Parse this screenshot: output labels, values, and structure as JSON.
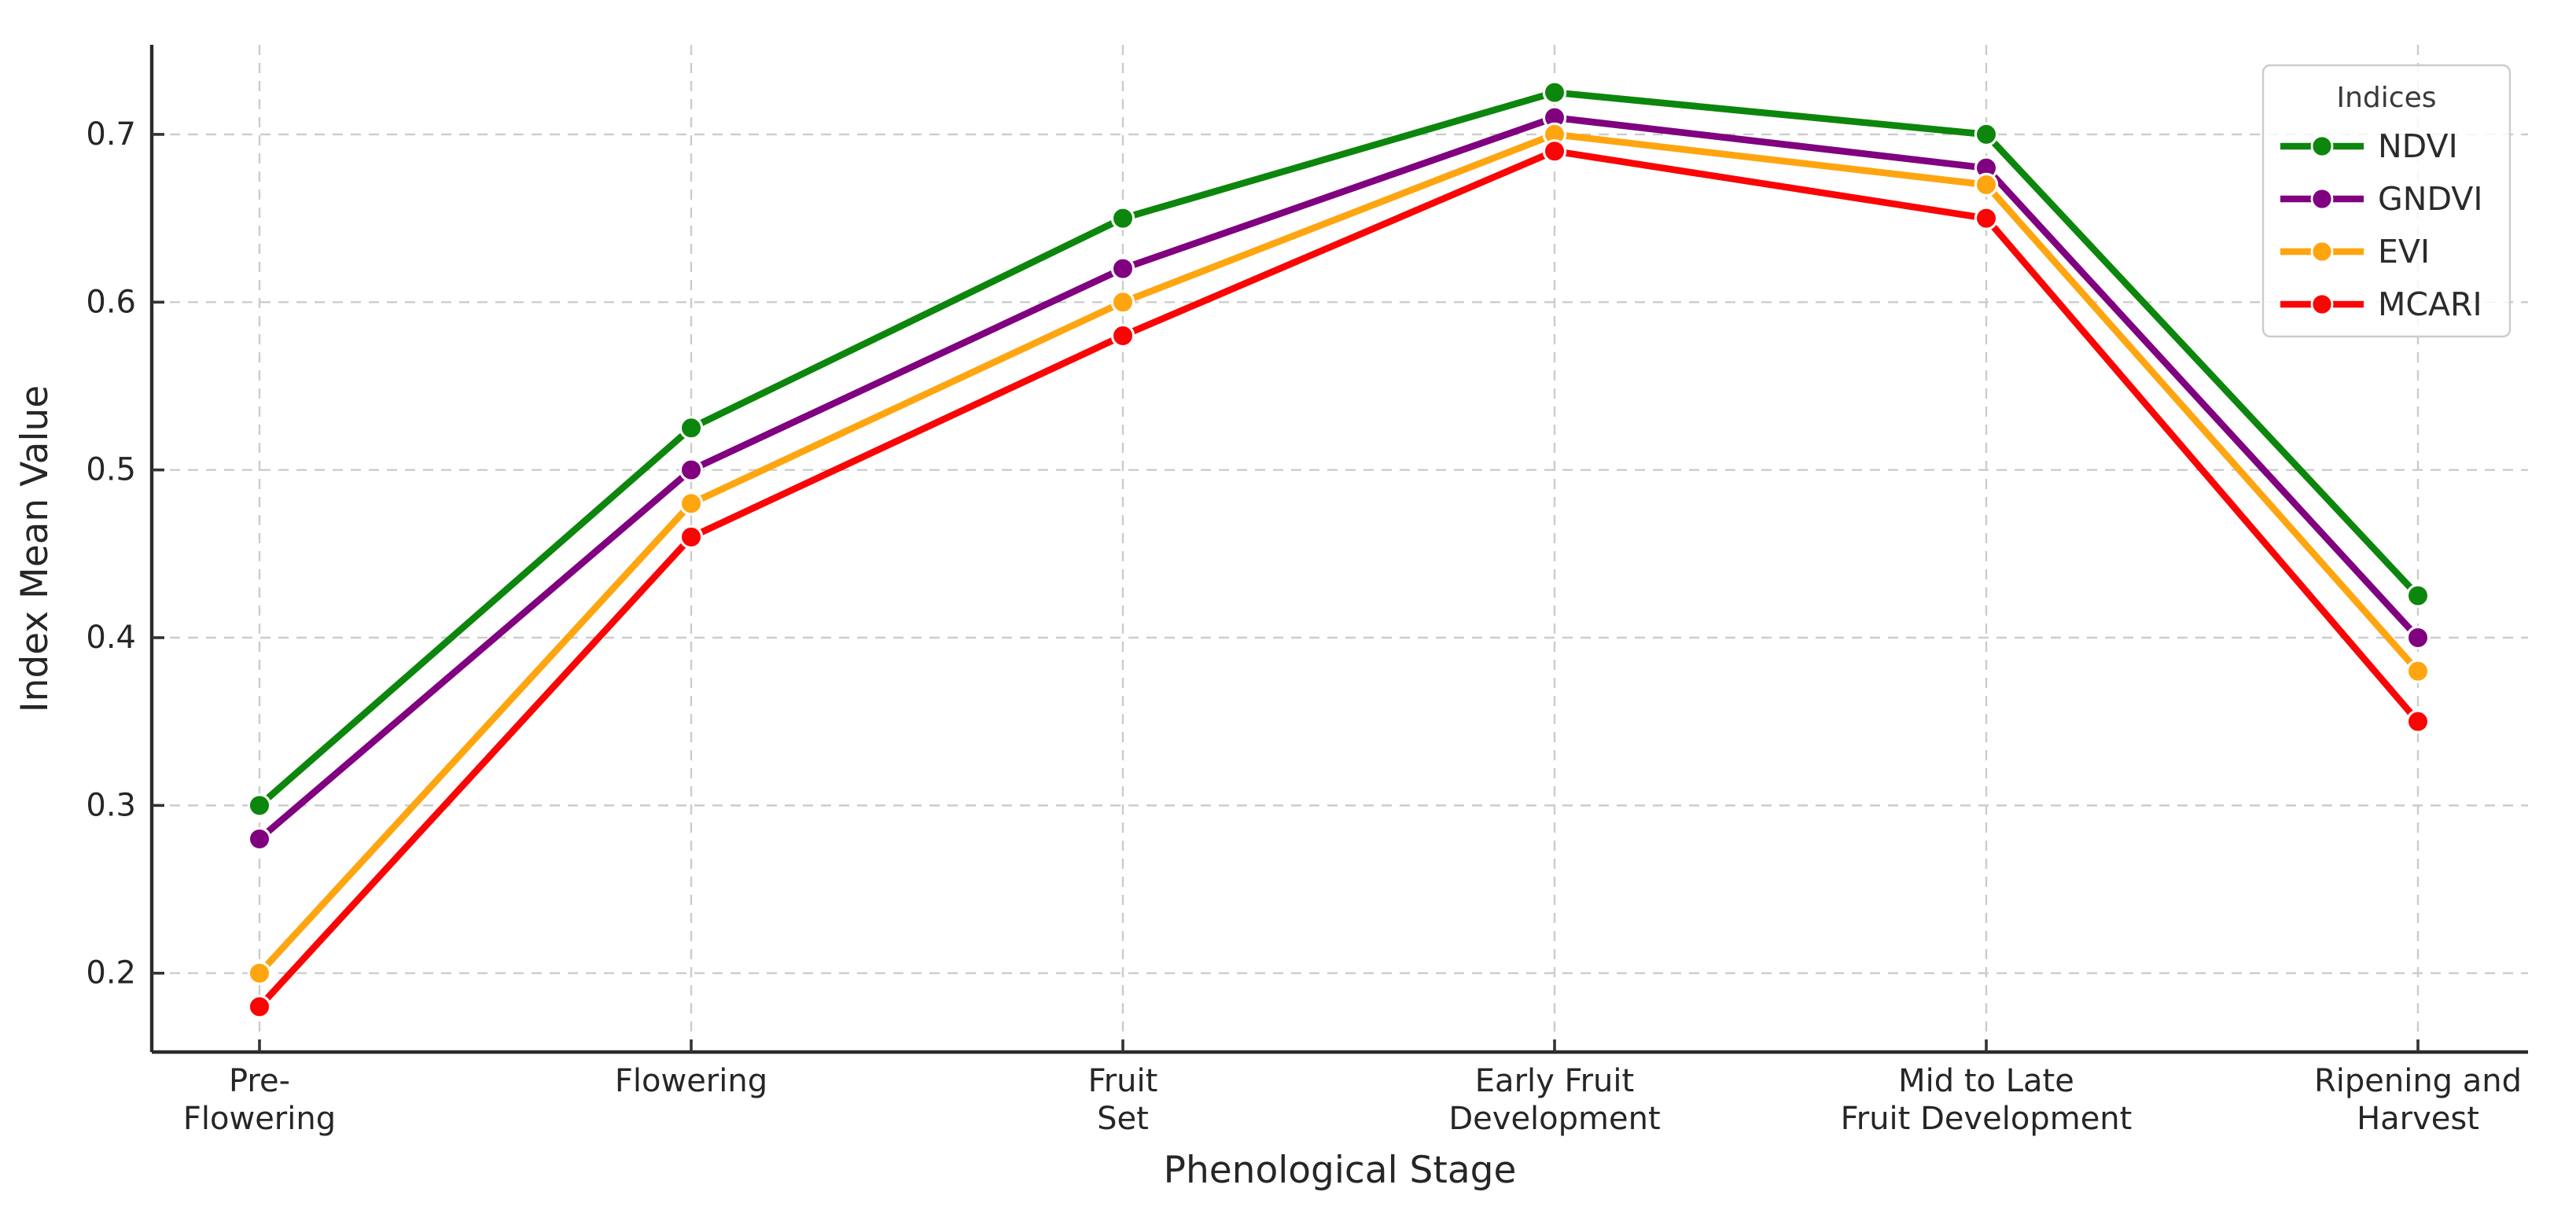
{
  "chart_data": {
    "type": "line",
    "title": "",
    "xlabel": "Phenological Stage",
    "ylabel": "Index Mean Value",
    "categories": [
      "Pre-\nFlowering",
      "Flowering",
      "Fruit\nSet",
      "Early Fruit\nDevelopment",
      "Mid to Late\nFruit Development",
      "Ripening and\nHarvest"
    ],
    "series": [
      {
        "name": "NDVI",
        "color": "#0c860c",
        "values": [
          0.3,
          0.525,
          0.65,
          0.725,
          0.7,
          0.425
        ]
      },
      {
        "name": "GNDVI",
        "color": "#800080",
        "values": [
          0.28,
          0.5,
          0.62,
          0.71,
          0.68,
          0.4
        ]
      },
      {
        "name": "EVI",
        "color": "#FFA510",
        "values": [
          0.2,
          0.48,
          0.6,
          0.7,
          0.67,
          0.38
        ]
      },
      {
        "name": "MCARI",
        "color": "#FA0505",
        "values": [
          0.18,
          0.46,
          0.58,
          0.69,
          0.65,
          0.35
        ]
      }
    ],
    "y_ticks": [
      0.2,
      0.3,
      0.4,
      0.5,
      0.6,
      0.7
    ],
    "ylim": [
      0.153,
      0.7534
    ],
    "grid": true,
    "grid_style": "dashed",
    "legend": {
      "title": "Indices",
      "position": "upper right",
      "entries": [
        "NDVI",
        "GNDVI",
        "EVI",
        "MCARI"
      ]
    }
  },
  "styles": {
    "background": "#ffffff",
    "grid_color": "#cccccc",
    "spine_color": "#2b2b2b",
    "tick_color": "#333333",
    "text_color": "#262626",
    "marker_edge": "#ffffff",
    "legend_bg": "rgba(255,255,255,0.82)",
    "legend_border": "#cccccc"
  }
}
